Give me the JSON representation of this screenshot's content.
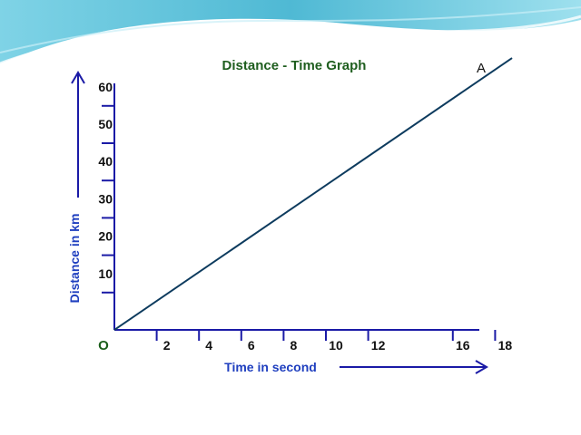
{
  "chart_data": {
    "type": "line",
    "title": "Distance - Time Graph",
    "xlabel": "Time in second",
    "ylabel": "Distance in km",
    "origin_label": "O",
    "x_ticks": [
      2,
      4,
      6,
      8,
      10,
      12,
      16,
      18
    ],
    "y_ticks": [
      10,
      20,
      30,
      40,
      50,
      60
    ],
    "xlim": [
      0,
      19
    ],
    "ylim": [
      0,
      67
    ],
    "series": [
      {
        "x": [
          0,
          18.8
        ],
        "y": [
          0,
          72.8
        ],
        "point_label": "A"
      }
    ],
    "grid": false,
    "legend": "none",
    "colors": {
      "line": "#0d3b5e",
      "axis": "#1a1aa6",
      "tick_mark_y": "#1a1aa6",
      "tick_mark_x": "#1a1aa6",
      "title": "#1f5e1f",
      "axis_title": "#1f3fbf",
      "slide_wave": "#5fc3d9"
    }
  }
}
